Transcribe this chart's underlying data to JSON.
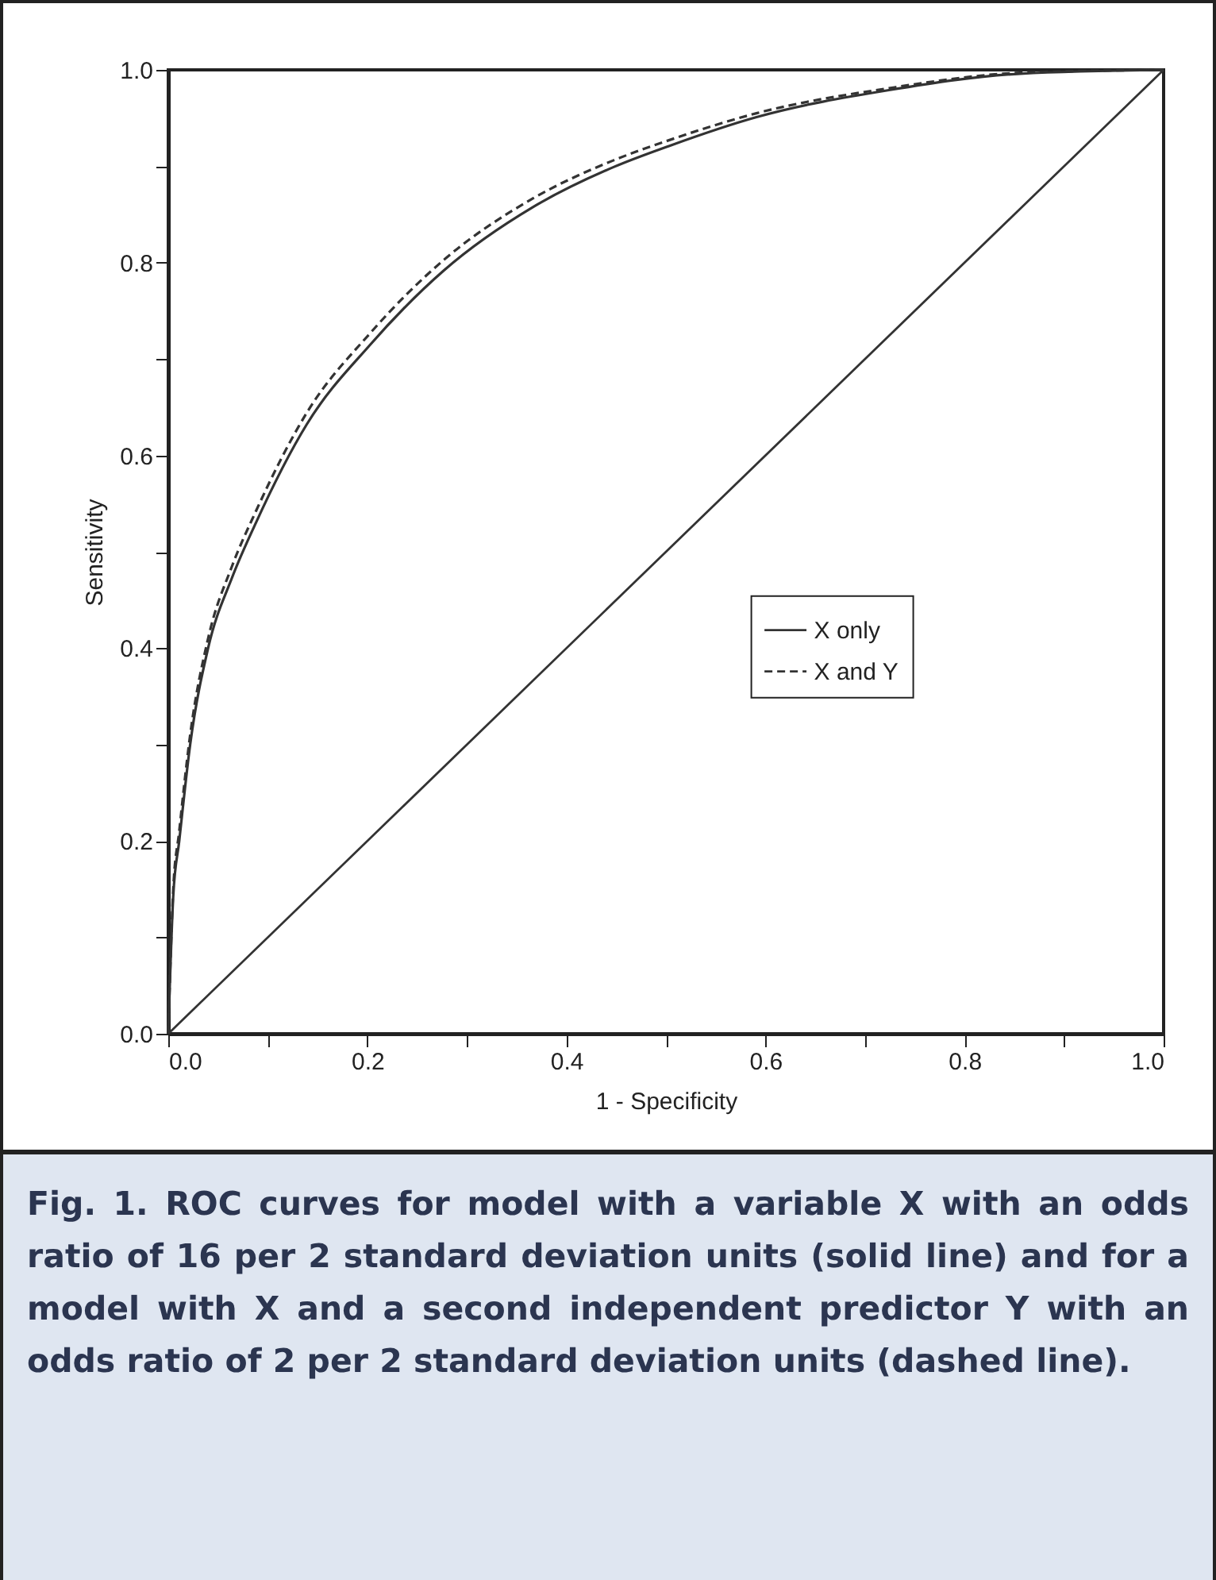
{
  "chart_data": {
    "type": "line",
    "xlabel": "1 - Specificity",
    "ylabel": "Sensitivity",
    "xlim": [
      0,
      1
    ],
    "ylim": [
      0,
      1
    ],
    "xticks": [
      {
        "value": 0,
        "label": "0.0"
      },
      {
        "value": 0.1,
        "label": null
      },
      {
        "value": 0.2,
        "label": "0.2"
      },
      {
        "value": 0.3,
        "label": null
      },
      {
        "value": 0.4,
        "label": "0.4"
      },
      {
        "value": 0.5,
        "label": null
      },
      {
        "value": 0.6,
        "label": "0.6"
      },
      {
        "value": 0.7,
        "label": null
      },
      {
        "value": 0.8,
        "label": "0.8"
      },
      {
        "value": 0.9,
        "label": null
      },
      {
        "value": 1,
        "label": "1.0"
      }
    ],
    "yticks": [
      {
        "value": 0,
        "label": "0.0"
      },
      {
        "value": 0.1,
        "label": null
      },
      {
        "value": 0.2,
        "label": "0.2"
      },
      {
        "value": 0.3,
        "label": null
      },
      {
        "value": 0.4,
        "label": "0.4"
      },
      {
        "value": 0.5,
        "label": null
      },
      {
        "value": 0.6,
        "label": "0.6"
      },
      {
        "value": 0.7,
        "label": null
      },
      {
        "value": 0.8,
        "label": "0.8"
      },
      {
        "value": 0.9,
        "label": null
      },
      {
        "value": 1,
        "label": "1.0"
      }
    ],
    "legend": "right",
    "grid": false,
    "series": [
      {
        "name": "X only",
        "color": "#333333",
        "line_style": "solid",
        "x": [
          0,
          0.005,
          0.011,
          0.022,
          0.04,
          0.064,
          0.088,
          0.139,
          0.203,
          0.277,
          0.367,
          0.447,
          0.503,
          0.591,
          0.724,
          0.856,
          1
        ],
        "values": [
          0,
          0.143,
          0.2,
          0.3,
          0.4,
          0.473,
          0.53,
          0.632,
          0.715,
          0.792,
          0.858,
          0.899,
          0.921,
          0.951,
          0.979,
          0.996,
          1
        ]
      },
      {
        "name": "X and Y",
        "color": "#333333",
        "line_style": "dashed",
        "x": [
          0,
          0.005,
          0.011,
          0.022,
          0.04,
          0.064,
          0.088,
          0.139,
          0.203,
          0.277,
          0.367,
          0.447,
          0.503,
          0.591,
          0.724,
          0.856,
          1
        ],
        "values": [
          0,
          0.15,
          0.21,
          0.31,
          0.41,
          0.485,
          0.542,
          0.644,
          0.727,
          0.803,
          0.867,
          0.906,
          0.927,
          0.955,
          0.981,
          0.997,
          1
        ]
      },
      {
        "color": "#333333",
        "line_style": "solid",
        "x": [
          0,
          1
        ],
        "values": [
          0,
          1
        ]
      }
    ],
    "annotations": [
      "Fig. 1. ROC curves for model with a variable X with an odds ratio of 16 per 2 standard deviation units (solid line) and for a model with X and a second independent predictor Y with an odds ratio of 2 per 2 standard deviation units (dashed line)."
    ]
  }
}
